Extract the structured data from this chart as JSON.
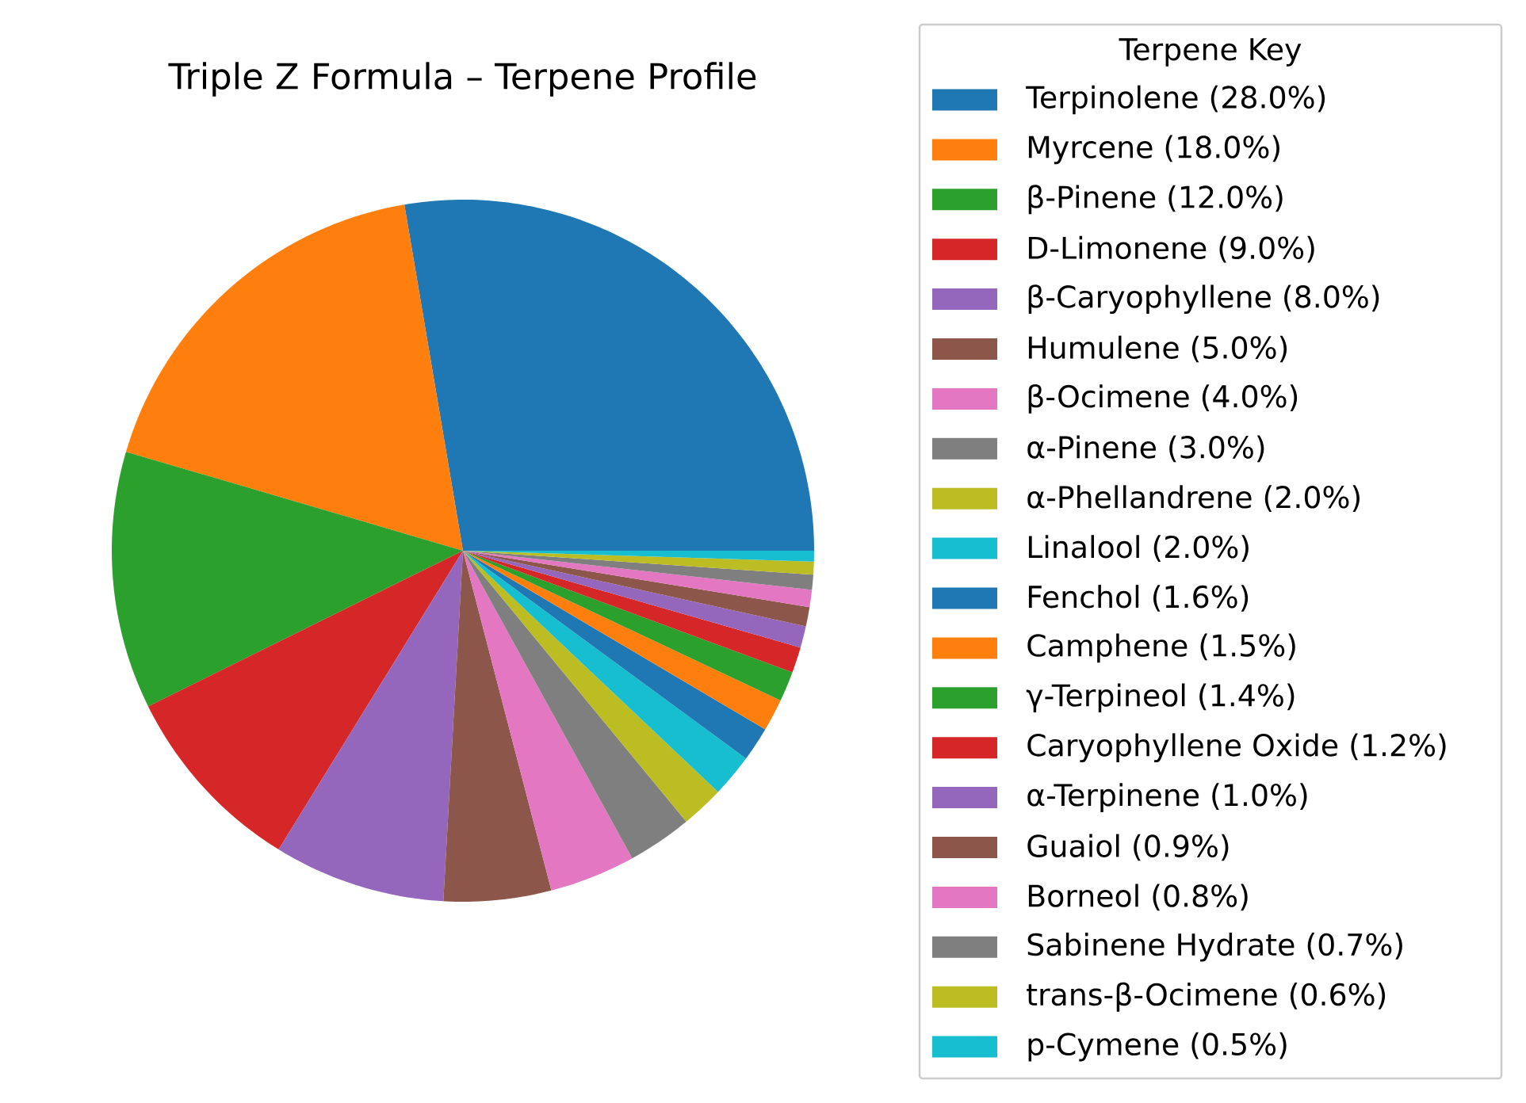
{
  "chart_data": {
    "type": "pie",
    "title": "Triple Z Formula – Terpene Profile",
    "legend_title": "Terpene Key",
    "legend": "right",
    "categories": [
      "Terpinolene (28.0%)",
      "Myrcene (18.0%)",
      "β-Pinene (12.0%)",
      "D-Limonene (9.0%)",
      "β-Caryophyllene (8.0%)",
      "Humulene (5.0%)",
      "β-Ocimene (4.0%)",
      "α-Pinene (3.0%)",
      "α-Phellandrene (2.0%)",
      "Linalool (2.0%)",
      "Fenchol (1.6%)",
      "Camphene (1.5%)",
      "γ-Terpineol (1.4%)",
      "Caryophyllene Oxide (1.2%)",
      "α-Terpinene (1.0%)",
      "Guaiol (0.9%)",
      "Borneol (0.8%)",
      "Sabinene Hydrate (0.7%)",
      "trans-β-Ocimene (0.6%)",
      "p-Cymene (0.5%)"
    ],
    "values": [
      28.0,
      18.0,
      12.0,
      9.0,
      8.0,
      5.0,
      4.0,
      3.0,
      2.0,
      2.0,
      1.6,
      1.5,
      1.4,
      1.2,
      1.0,
      0.9,
      0.8,
      0.7,
      0.6,
      0.5
    ],
    "colors": [
      "#1f77b4",
      "#ff7f0e",
      "#2ca02c",
      "#d62728",
      "#9467bd",
      "#8c564b",
      "#e377c2",
      "#7f7f7f",
      "#bcbd22",
      "#17becf",
      "#1f77b4",
      "#ff7f0e",
      "#2ca02c",
      "#d62728",
      "#9467bd",
      "#8c564b",
      "#e377c2",
      "#7f7f7f",
      "#bcbd22",
      "#17becf"
    ]
  }
}
